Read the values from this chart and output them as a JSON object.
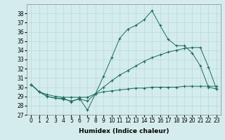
{
  "x": [
    0,
    1,
    2,
    3,
    4,
    5,
    6,
    7,
    8,
    9,
    10,
    11,
    12,
    13,
    14,
    15,
    16,
    17,
    18,
    19,
    20,
    21,
    22,
    23
  ],
  "line1": [
    30.3,
    29.5,
    29.0,
    28.8,
    28.8,
    28.4,
    28.8,
    27.5,
    29.3,
    31.2,
    33.2,
    35.3,
    36.3,
    36.7,
    37.3,
    38.3,
    36.7,
    35.2,
    34.5,
    34.5,
    33.7,
    32.3,
    30.0,
    29.8
  ],
  "line2": [
    30.3,
    29.5,
    29.0,
    28.8,
    28.7,
    28.5,
    28.7,
    28.5,
    29.3,
    30.0,
    30.7,
    31.3,
    31.8,
    32.3,
    32.8,
    33.2,
    33.5,
    33.8,
    34.0,
    34.2,
    34.3,
    34.3,
    32.2,
    29.8
  ],
  "line3": [
    30.3,
    29.5,
    29.2,
    29.0,
    28.9,
    28.9,
    28.9,
    28.9,
    29.3,
    29.5,
    29.6,
    29.7,
    29.8,
    29.9,
    29.9,
    30.0,
    30.0,
    30.0,
    30.0,
    30.1,
    30.1,
    30.1,
    30.1,
    30.1
  ],
  "color": "#1a6b5a",
  "bg_color": "#d4eced",
  "grid_color": "#b8d8d9",
  "xlabel": "Humidex (Indice chaleur)",
  "ylim": [
    27,
    39
  ],
  "xlim": [
    -0.5,
    23.5
  ],
  "yticks": [
    27,
    28,
    29,
    30,
    31,
    32,
    33,
    34,
    35,
    36,
    37,
    38
  ],
  "xticks": [
    0,
    1,
    2,
    3,
    4,
    5,
    6,
    7,
    8,
    9,
    10,
    11,
    12,
    13,
    14,
    15,
    16,
    17,
    18,
    19,
    20,
    21,
    22,
    23
  ],
  "xlabel_fontsize": 6.5,
  "tick_fontsize": 5.5,
  "linewidth": 0.7,
  "markersize": 2.5,
  "markeredgewidth": 0.8
}
